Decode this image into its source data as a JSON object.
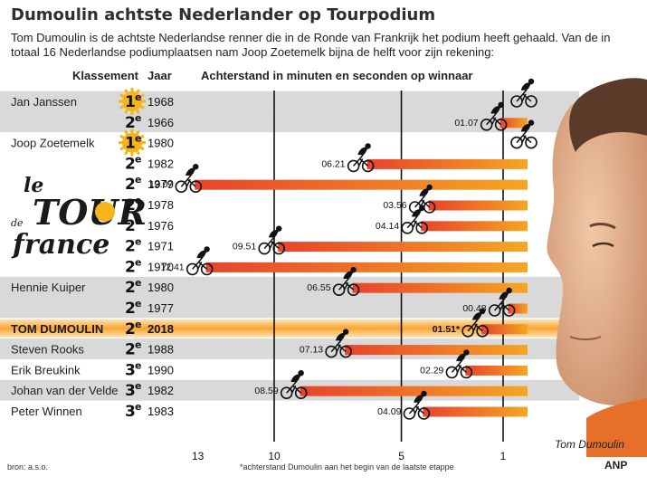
{
  "title": "Dumoulin achtste Nederlander op Tourpodium",
  "intro": "Tom Dumoulin is de achtste Nederlandse renner die in de Ronde van Frankrijk het podium heeft gehaald.  Van de in totaal 16 Nederlandse podiumplaatsen nam Joop Zoetemelk bijna de helft voor zijn rekening:",
  "headers": {
    "klassement": "Klassement",
    "jaar": "Jaar",
    "achterstand": "Achterstand in minuten en seconden op winnaar"
  },
  "logo_text": "le TOUR de France",
  "portrait_caption": "Tom Dumoulin",
  "footnote": "*achterstand Dumoulin aan het begin van de laatste etappe",
  "source": "bron: a.s.o.",
  "agency": "ANP",
  "colors": {
    "bar_start": "#e8432c",
    "bar_end": "#f5a623",
    "band": "#d9d9d9",
    "highlight": "#f9a531",
    "sun": "#f4b41a",
    "text": "#222222"
  },
  "chart_data": {
    "type": "bar",
    "orientation": "horizontal",
    "x_axis_reversed": true,
    "xlim": [
      14.2,
      0
    ],
    "xticks": [
      13,
      10,
      5,
      1
    ],
    "grid_vertical_at": [
      10,
      5,
      1
    ],
    "rows": [
      {
        "name": "Jan Janssen",
        "rank": "1",
        "year": "1968",
        "gap": 0,
        "label": "",
        "band": true,
        "highlight": false
      },
      {
        "name": "",
        "rank": "2",
        "year": "1966",
        "gap": 1.12,
        "label": "01.07",
        "band": true,
        "highlight": false
      },
      {
        "name": "Joop Zoetemelk",
        "rank": "1",
        "year": "1980",
        "gap": 0,
        "label": "",
        "band": false,
        "highlight": false
      },
      {
        "name": "",
        "rank": "2",
        "year": "1982",
        "gap": 6.35,
        "label": "06.21",
        "band": false,
        "highlight": false
      },
      {
        "name": "",
        "rank": "2",
        "year": "1979",
        "gap": 13.12,
        "label": "13.07",
        "band": false,
        "highlight": false
      },
      {
        "name": "",
        "rank": "2",
        "year": "1978",
        "gap": 3.93,
        "label": "03.56",
        "band": false,
        "highlight": false
      },
      {
        "name": "",
        "rank": "2",
        "year": "1976",
        "gap": 4.23,
        "label": "04.14",
        "band": false,
        "highlight": false
      },
      {
        "name": "",
        "rank": "2",
        "year": "1971",
        "gap": 9.85,
        "label": "09.51",
        "band": false,
        "highlight": false
      },
      {
        "name": "",
        "rank": "2",
        "year": "1970",
        "gap": 12.68,
        "label": "12.41",
        "band": false,
        "highlight": false
      },
      {
        "name": "Hennie Kuiper",
        "rank": "2",
        "year": "1980",
        "gap": 6.92,
        "label": "06.55",
        "band": true,
        "highlight": false
      },
      {
        "name": "",
        "rank": "2",
        "year": "1977",
        "gap": 0.8,
        "label": "00.48",
        "band": true,
        "highlight": false
      },
      {
        "name": "TOM DUMOULIN",
        "rank": "2",
        "year": "2018",
        "gap": 1.85,
        "label": "01.51*",
        "band": false,
        "highlight": true
      },
      {
        "name": "Steven Rooks",
        "rank": "2",
        "year": "1988",
        "gap": 7.22,
        "label": "07.13",
        "band": true,
        "highlight": false
      },
      {
        "name": "Erik Breukink",
        "rank": "3",
        "year": "1990",
        "gap": 2.48,
        "label": "02.29",
        "band": false,
        "highlight": false
      },
      {
        "name": "Johan van der Velde",
        "rank": "3",
        "year": "1982",
        "gap": 8.98,
        "label": "08.59",
        "band": true,
        "highlight": false
      },
      {
        "name": "Peter Winnen",
        "rank": "3",
        "year": "1983",
        "gap": 4.15,
        "label": "04.09",
        "band": false,
        "highlight": false
      }
    ]
  }
}
